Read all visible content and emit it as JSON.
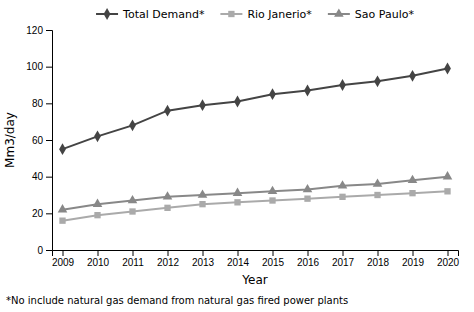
{
  "chart_data": {
    "type": "line",
    "xlabel": "Year",
    "ylabel": "Mm3/day",
    "x": [
      2009,
      2010,
      2011,
      2012,
      2013,
      2014,
      2015,
      2016,
      2017,
      2018,
      2019,
      2020
    ],
    "xlim": [
      2008.7,
      2020.3
    ],
    "xticks": [
      2009,
      2010,
      2011,
      2012,
      2013,
      2014,
      2015,
      2016,
      2017,
      2018,
      2019,
      2020
    ],
    "ylim": [
      0,
      120
    ],
    "yticks": [
      0,
      20,
      40,
      60,
      80,
      100,
      120
    ],
    "series": [
      {
        "name": "Total Demand*",
        "color": "#444444",
        "marker": "diamond",
        "values": [
          55,
          62,
          68,
          76,
          79,
          81,
          85,
          87,
          90,
          92,
          95,
          99
        ]
      },
      {
        "name": "Rio Janerio*",
        "color": "#aaaaaa",
        "marker": "square",
        "values": [
          16,
          19,
          21,
          23,
          25,
          26,
          27,
          28,
          29,
          30,
          31,
          32
        ]
      },
      {
        "name": "Sao Paulo*",
        "color": "#888888",
        "marker": "triangle",
        "values": [
          22,
          25,
          27,
          29,
          30,
          31,
          32,
          33,
          35,
          36,
          38,
          40
        ]
      }
    ],
    "annotations": [
      "*No include natural gas demand from natural gas fired power plants"
    ],
    "legend": "top",
    "grid": false
  }
}
